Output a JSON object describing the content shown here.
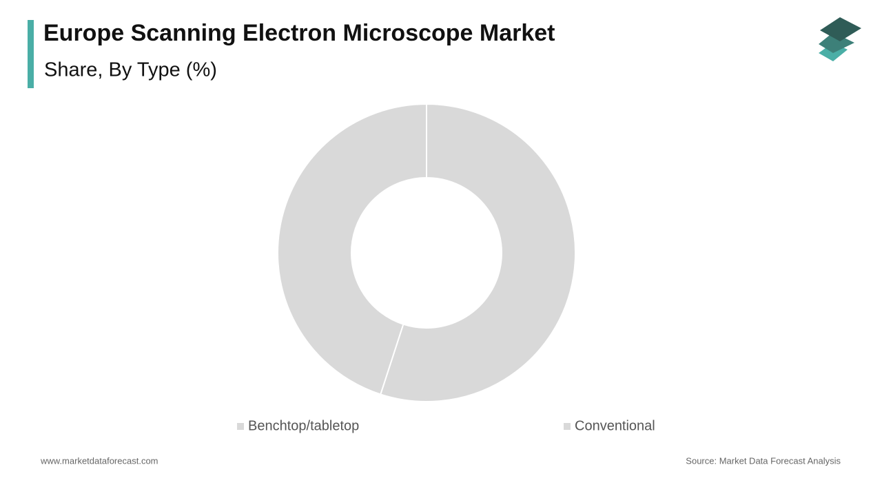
{
  "chart_data": {
    "type": "pie",
    "title": "Europe Scanning Electron Microscope Market",
    "subtitle": "Share, By Type (%)",
    "categories": [
      "Benchtop/tabletop",
      "Conventional"
    ],
    "values": [
      55,
      45
    ],
    "colors": [
      "#d9d9d9",
      "#d9d9d9"
    ],
    "donut": true
  },
  "footer": {
    "website": "www.marketdataforecast.com",
    "source": "Source: Market Data Forecast Analysis"
  }
}
